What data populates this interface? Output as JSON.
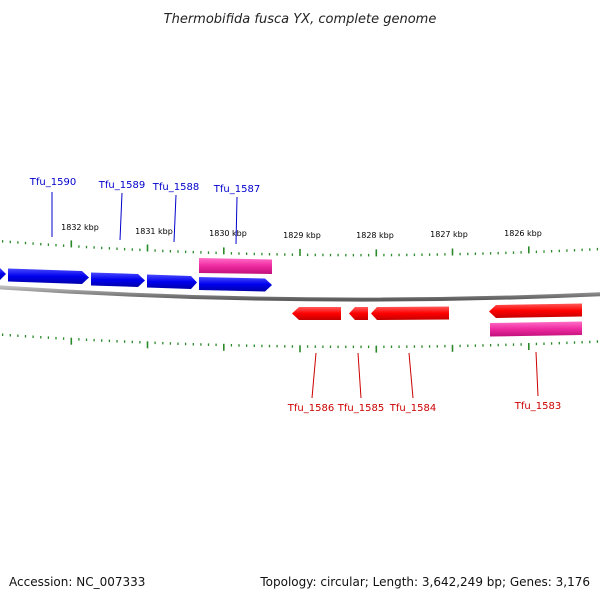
{
  "title": "Thermobifida fusca YX, complete genome",
  "footer": {
    "accession": "Accession: NC_007333",
    "stats": "Topology: circular; Length: 3,642,249 bp; Genes: 3,176"
  },
  "colors": {
    "forward_gene": "#0000ee",
    "reverse_gene": "#ff0000",
    "highlight_gene": "#ee2aa0",
    "backbone": "#8a8a8a",
    "ticks": "#2a8a2a",
    "forward_label": "#0000cc",
    "reverse_label": "#cc0000"
  },
  "scale_labels": [
    "1832 kbp",
    "1831 kbp",
    "1830 kbp",
    "1829 kbp",
    "1828 kbp",
    "1827 kbp",
    "1826 kbp"
  ],
  "forward_labels": [
    "Tfu_1590",
    "Tfu_1589",
    "Tfu_1588",
    "Tfu_1587"
  ],
  "reverse_labels": [
    "Tfu_1586",
    "Tfu_1585",
    "Tfu_1584",
    "Tfu_1583"
  ]
}
